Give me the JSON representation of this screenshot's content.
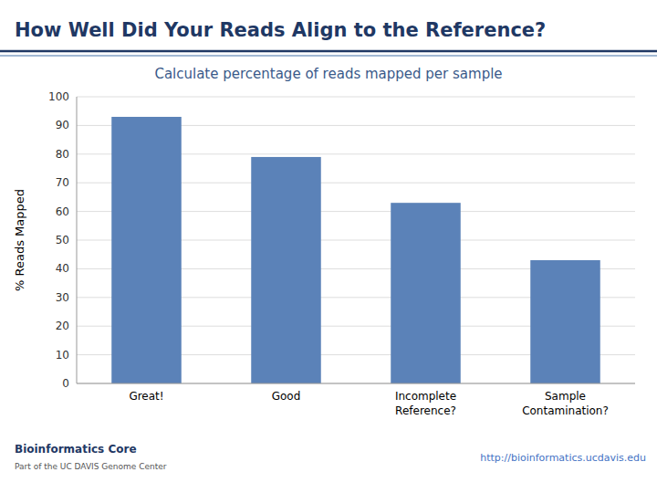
{
  "chart_data": {
    "type": "bar",
    "title": "How Well Did Your Reads Align to the Reference?",
    "subtitle": "Calculate percentage of reads mapped per sample",
    "categories": [
      "Great!",
      "Good",
      "Incomplete\nReference?",
      "Sample\nContamination?"
    ],
    "values": [
      93,
      79,
      63,
      43
    ],
    "color": "#5b82b8",
    "ylabel": "% Reads Mapped",
    "ylim": [
      0,
      100
    ],
    "yticks": [
      0,
      10,
      20,
      30,
      40,
      50,
      60,
      70,
      80,
      90,
      100
    ],
    "grid": true,
    "annotations": [
      "Bioinformatics Core",
      "Part of the UC DAVIS Genome Center",
      "http://bioinformatics.ucdavis.edu"
    ]
  }
}
